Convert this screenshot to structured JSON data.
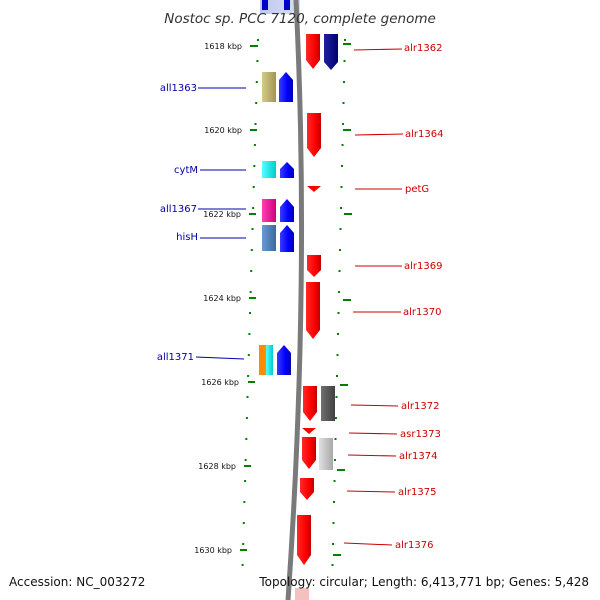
{
  "title": "Nostoc sp. PCC 7120, complete genome",
  "accession": "Accession: NC_003272",
  "topology": "Topology: circular; Length: 6,413,771 bp; Genes: 5,428",
  "ticks": [
    "1618 kbp",
    "1620 kbp",
    "1622 kbp",
    "1624 kbp",
    "1626 kbp",
    "1628 kbp",
    "1630 kbp"
  ],
  "left_genes": [
    "all1363",
    "cytM",
    "all1367",
    "hisH",
    "all1371"
  ],
  "right_genes": [
    "alr1362",
    "alr1364",
    "petG",
    "alr1369",
    "alr1370",
    "alr1372",
    "asr1373",
    "alr1374",
    "alr1375",
    "alr1376"
  ],
  "colors": {
    "forward_strand": "#ff0000",
    "reverse_strand": "#0000ff",
    "backbone": "#808080",
    "ticks": "#008000",
    "left_labels": "#0000aa",
    "right_labels": "#cc0000"
  }
}
